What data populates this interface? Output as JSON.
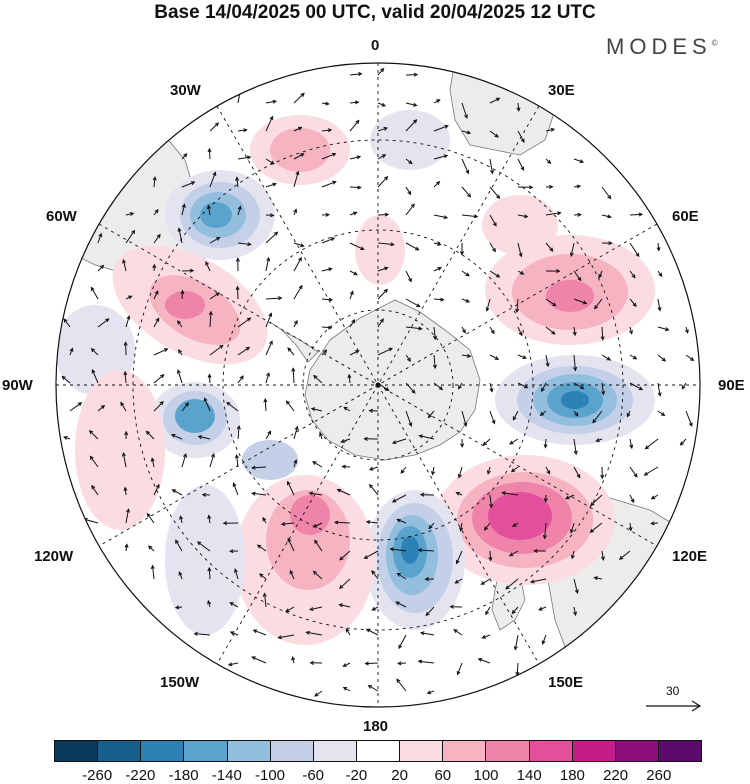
{
  "title": "Base 14/04/2025 00 UTC, valid 20/04/2025 12 UTC",
  "brand": {
    "name": "MODES",
    "mark": "©"
  },
  "map": {
    "projection": "south-polar-stereographic",
    "longitude_labels": {
      "top": "0",
      "bottom": "180",
      "left": "90W",
      "right": "90E",
      "nw1": "30W",
      "nw2": "60W",
      "ne1": "30E",
      "ne2": "60E",
      "sw1": "120W",
      "sw2": "150W",
      "se1": "120E",
      "se2": "150E"
    },
    "reference_vector": {
      "value": "30",
      "icon": "arrow-right-icon"
    }
  },
  "colorbar": {
    "colors": [
      "#0b3b5c",
      "#15608f",
      "#2c82b6",
      "#5aa3cd",
      "#93bede",
      "#c4d0e8",
      "#e4e4f1",
      "#ffffff",
      "#fbdde1",
      "#f6b3c1",
      "#ef83aa",
      "#e2509c",
      "#c21d88",
      "#8c0f7c",
      "#5b0a6e"
    ],
    "ticks": [
      "-260",
      "-220",
      "-180",
      "-140",
      "-100",
      "-60",
      "-20",
      "20",
      "60",
      "100",
      "140",
      "180",
      "220",
      "260"
    ]
  },
  "anomalies": [
    {
      "name": "pos-northeast",
      "value": 100
    },
    {
      "name": "pos-east",
      "value": 60
    },
    {
      "name": "neg-east",
      "value": -220
    },
    {
      "name": "pos-southeast",
      "value": 200
    },
    {
      "name": "neg-south",
      "value": -200
    },
    {
      "name": "pos-southsouthwest",
      "value": 140
    },
    {
      "name": "neg-west",
      "value": -180
    },
    {
      "name": "neg-northwest",
      "value": -180
    },
    {
      "name": "pos-westnorthwest",
      "value": 140
    },
    {
      "name": "pos-north",
      "value": 60
    }
  ]
}
